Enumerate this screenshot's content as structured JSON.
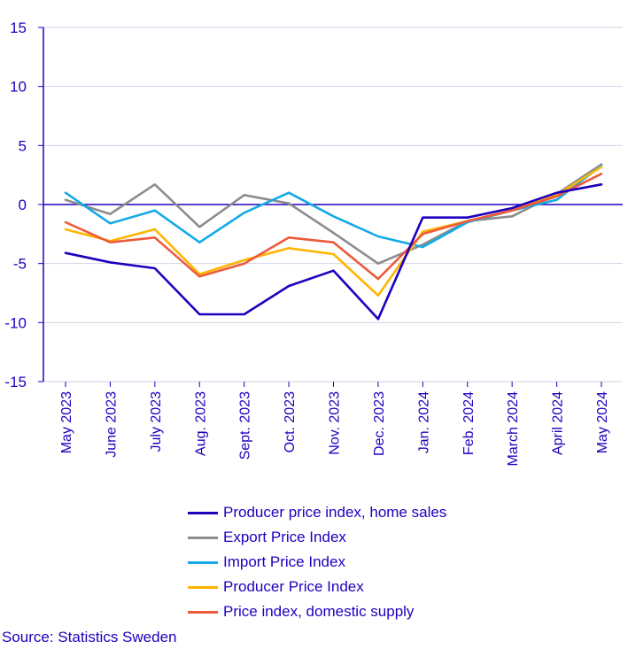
{
  "chart_data": {
    "type": "line",
    "title": "",
    "xlabel": "",
    "ylabel": "",
    "ylim": [
      -15,
      15
    ],
    "yticks": [
      "15",
      "10",
      "5",
      "0",
      "-5",
      "-10",
      "-15"
    ],
    "categories": [
      "May 2023",
      "June 2023",
      "July 2023",
      "Aug. 2023",
      "Sept. 2023",
      "Oct. 2023",
      "Nov. 2023",
      "Dec. 2023",
      "Jan. 2024",
      "Feb. 2024",
      "March 2024",
      "April 2024",
      "May 2024"
    ],
    "series": [
      {
        "name": "Producer price index, home sales",
        "color": "#1e00be",
        "values": [
          -4.1,
          -4.9,
          -5.4,
          -9.3,
          -9.3,
          -6.9,
          -5.6,
          -9.7,
          -1.1,
          -1.1,
          -0.3,
          1.0,
          1.7
        ]
      },
      {
        "name": "Export Price Index",
        "color": "#8c8c8c",
        "values": [
          0.4,
          -0.8,
          1.7,
          -1.9,
          0.8,
          0.1,
          -2.4,
          -5.0,
          -3.4,
          -1.4,
          -1.0,
          0.9,
          3.4
        ]
      },
      {
        "name": "Import Price Index",
        "color": "#14aae6",
        "values": [
          1.0,
          -1.6,
          -0.5,
          -3.2,
          -0.7,
          1.0,
          -1.0,
          -2.7,
          -3.6,
          -1.5,
          -0.5,
          0.4,
          3.3
        ]
      },
      {
        "name": "Producer Price Index",
        "color": "#ffb400",
        "values": [
          -2.1,
          -3.1,
          -2.1,
          -5.9,
          -4.7,
          -3.7,
          -4.2,
          -7.7,
          -2.3,
          -1.4,
          -0.5,
          0.8,
          3.2
        ]
      },
      {
        "name": "Price index, domestic supply",
        "color": "#ed5a3c",
        "values": [
          -1.5,
          -3.2,
          -2.8,
          -6.1,
          -5.0,
          -2.8,
          -3.2,
          -6.3,
          -2.5,
          -1.4,
          -0.5,
          0.7,
          2.6
        ]
      }
    ]
  },
  "source": "Source: Statistics Sweden"
}
